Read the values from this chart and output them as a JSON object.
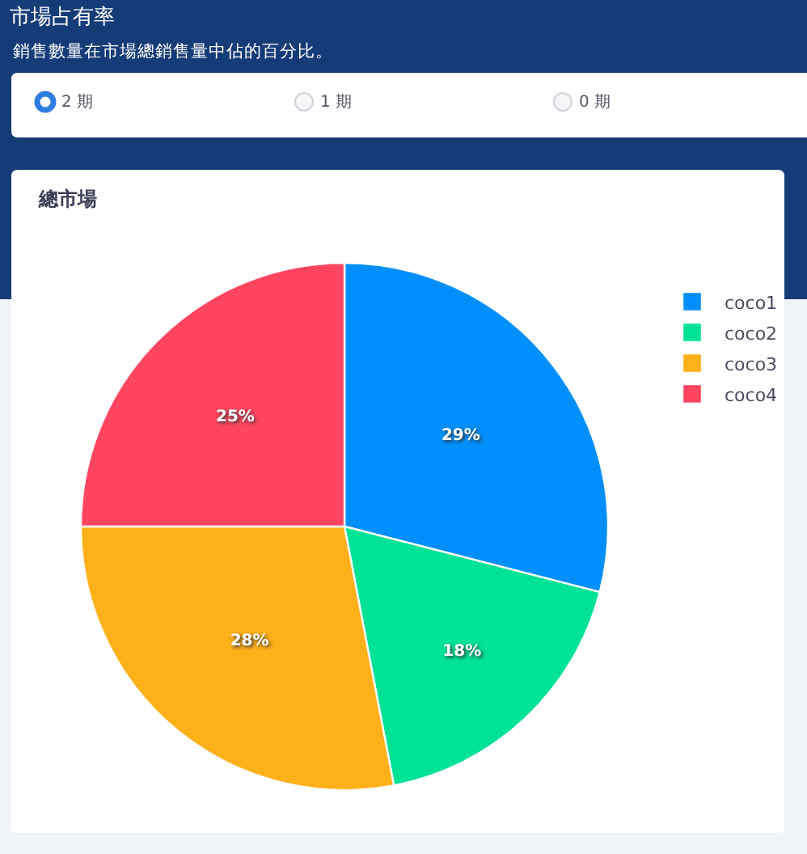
{
  "chart_data": {
    "type": "pie",
    "title": "市場占有率",
    "subtitle": "銷售數量在市場總銷售量中佔的百分比。",
    "annotations": [
      "2 期",
      "1 期",
      "0 期",
      "總市場"
    ],
    "categories": [
      "coco1",
      "coco2",
      "coco3",
      "coco4"
    ],
    "values": [
      29,
      18,
      28,
      25
    ],
    "colors": [
      "#008ffb",
      "#00e396",
      "#feb019",
      "#ff4560"
    ],
    "value_labels": [
      "29%",
      "18%",
      "28%",
      "25%"
    ],
    "legend": "top right"
  }
}
